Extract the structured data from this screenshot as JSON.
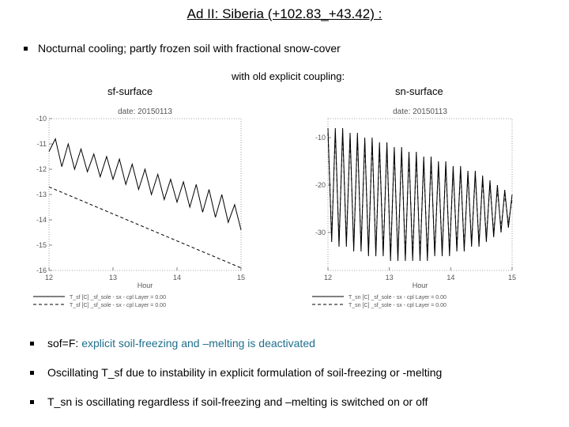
{
  "title": "Ad II:   Siberia  (+102.83_+43.42) :",
  "intro": "Nocturnal cooling; partly frozen soil with fractional snow-cover",
  "coupling_label": "with old explicit coupling:",
  "chart_data": [
    {
      "type": "line",
      "panel_label": "sf-surface",
      "title": "date: 20150113",
      "xlabel": "Hour",
      "ylabel": "",
      "x_ticks": [
        "12",
        "13",
        "14",
        "15"
      ],
      "y_ticks": [
        "-10",
        "-11",
        "-12",
        "-13",
        "-14",
        "-15",
        "-16"
      ],
      "xlim": [
        12,
        15
      ],
      "ylim": [
        -16,
        -10
      ],
      "grid": false,
      "legend_position": "bottom",
      "series": [
        {
          "name": "T_sf [C] _sf_sole - sx - cpl   Layer = 0.00",
          "style": "solid",
          "x": [
            12.0,
            12.1,
            12.2,
            12.3,
            12.4,
            12.5,
            12.6,
            12.7,
            12.8,
            12.9,
            13.0,
            13.1,
            13.2,
            13.3,
            13.4,
            13.5,
            13.6,
            13.7,
            13.8,
            13.9,
            14.0,
            14.1,
            14.2,
            14.3,
            14.4,
            14.5,
            14.6,
            14.7,
            14.8,
            14.9,
            15.0
          ],
          "y": [
            -11.3,
            -10.8,
            -11.9,
            -11.0,
            -12.0,
            -11.2,
            -12.1,
            -11.4,
            -12.3,
            -11.5,
            -12.4,
            -11.6,
            -12.6,
            -11.8,
            -12.8,
            -12.0,
            -13.0,
            -12.2,
            -13.2,
            -12.4,
            -13.3,
            -12.5,
            -13.5,
            -12.6,
            -13.7,
            -12.8,
            -13.9,
            -13.0,
            -14.1,
            -13.4,
            -14.4
          ]
        },
        {
          "name": "T_sf [C] _sf_sole - sx - cpl   Layer = 0.00",
          "style": "dashed",
          "x": [
            12.0,
            15.0
          ],
          "y": [
            -12.7,
            -15.9
          ]
        }
      ]
    },
    {
      "type": "line",
      "panel_label": "sn-surface",
      "title": "date: 20150113",
      "xlabel": "Hour",
      "ylabel": "",
      "x_ticks": [
        "12",
        "13",
        "14",
        "15"
      ],
      "y_ticks": [
        "-10",
        "-20",
        "-30"
      ],
      "xlim": [
        12,
        15
      ],
      "ylim": [
        -38,
        -6
      ],
      "grid": false,
      "legend_position": "bottom",
      "series": [
        {
          "name": "T_sn [C] _sf_sole - sx - cpl   Layer = 0.00",
          "style": "solid",
          "x": [
            12.0,
            12.06,
            12.12,
            12.18,
            12.24,
            12.3,
            12.36,
            12.42,
            12.48,
            12.54,
            12.6,
            12.66,
            12.72,
            12.78,
            12.84,
            12.9,
            12.96,
            13.02,
            13.08,
            13.14,
            13.2,
            13.26,
            13.32,
            13.38,
            13.44,
            13.5,
            13.56,
            13.62,
            13.68,
            13.74,
            13.8,
            13.86,
            13.92,
            13.98,
            14.04,
            14.1,
            14.16,
            14.22,
            14.28,
            14.34,
            14.4,
            14.46,
            14.52,
            14.58,
            14.64,
            14.7,
            14.76,
            14.82,
            14.88,
            14.94,
            15.0
          ],
          "y": [
            -8,
            -32,
            -8,
            -33,
            -8,
            -33,
            -9,
            -34,
            -9,
            -34,
            -10,
            -35,
            -10,
            -35,
            -11,
            -35,
            -11,
            -36,
            -12,
            -36,
            -12,
            -36,
            -13,
            -36,
            -13,
            -36,
            -14,
            -36,
            -14,
            -35,
            -15,
            -35,
            -15,
            -35,
            -16,
            -34,
            -16,
            -34,
            -17,
            -33,
            -17,
            -33,
            -18,
            -32,
            -19,
            -31,
            -20,
            -30,
            -21,
            -29,
            -22
          ]
        },
        {
          "name": "T_sn [C] _sf_sole - sx - cpl   Layer = 0.00",
          "style": "dashed",
          "x": [
            12.0,
            12.06,
            12.12,
            12.18,
            12.24,
            12.3,
            12.36,
            12.42,
            12.48,
            12.54,
            12.6,
            12.66,
            12.72,
            12.78,
            12.84,
            12.9,
            12.96,
            13.02,
            13.08,
            13.14,
            13.2,
            13.26,
            13.32,
            13.38,
            13.44,
            13.5,
            13.56,
            13.62,
            13.68,
            13.74,
            13.8,
            13.86,
            13.92,
            13.98,
            14.04,
            14.1,
            14.16,
            14.22,
            14.28,
            14.34,
            14.4,
            14.46,
            14.52,
            14.58,
            14.64,
            14.7,
            14.76,
            14.82,
            14.88,
            14.94,
            15.0
          ],
          "y": [
            -9,
            -31,
            -9,
            -32,
            -9,
            -32,
            -10,
            -33,
            -10,
            -33,
            -11,
            -34,
            -11,
            -34,
            -12,
            -34,
            -12,
            -35,
            -13,
            -35,
            -13,
            -35,
            -14,
            -35,
            -14,
            -35,
            -15,
            -35,
            -15,
            -34,
            -16,
            -34,
            -16,
            -34,
            -17,
            -33,
            -17,
            -33,
            -18,
            -32,
            -18,
            -32,
            -19,
            -31,
            -20,
            -30,
            -21,
            -29,
            -22,
            -28,
            -23
          ]
        }
      ]
    }
  ],
  "bullets": [
    {
      "prefix": "sof=F: ",
      "text": "explicit soil-freezing and –melting is deactivated"
    },
    {
      "prefix": "",
      "text": "Oscillating T_sf due to instability in explicit formulation of soil-freezing or -melting"
    },
    {
      "prefix": "",
      "text": "T_sn is oscillating regardless if soil-freezing and –melting is switched on or off"
    }
  ]
}
